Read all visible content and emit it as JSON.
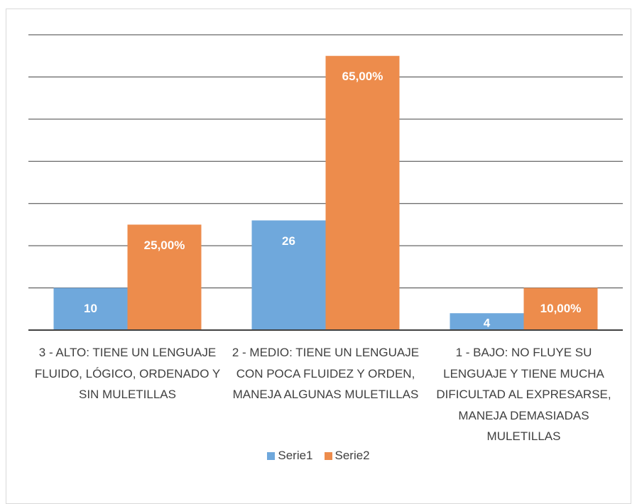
{
  "chart_data": {
    "type": "bar",
    "categories": [
      "3 - ALTO:  TIENE UN LENGUAJE FLUIDO, LÓGICO, ORDENADO Y SIN MULETILLAS",
      "2 - MEDIO:  TIENE UN LENGUAJE CON POCA FLUIDEZ  Y ORDEN, MANEJA ALGUNAS MULETILLAS",
      "1 - BAJO:  NO FLUYE SU LENGUAJE Y TIENE MUCHA DIFICULTAD AL EXPRESARSE, MANEJA DEMASIADAS MULETILLAS"
    ],
    "series": [
      {
        "name": "Serie1",
        "color": "#6fa8dc",
        "values": [
          10,
          26,
          4
        ]
      },
      {
        "name": "Serie2",
        "color": "#ed8c4c",
        "values": [
          25,
          65,
          10
        ],
        "value_labels": [
          "25,00%",
          "65,00%",
          "10,00%"
        ]
      }
    ],
    "ylim": [
      0,
      70
    ],
    "yticks": [
      0,
      10,
      20,
      30,
      40,
      50,
      60,
      70
    ],
    "grid": true,
    "legend": "bottom"
  }
}
